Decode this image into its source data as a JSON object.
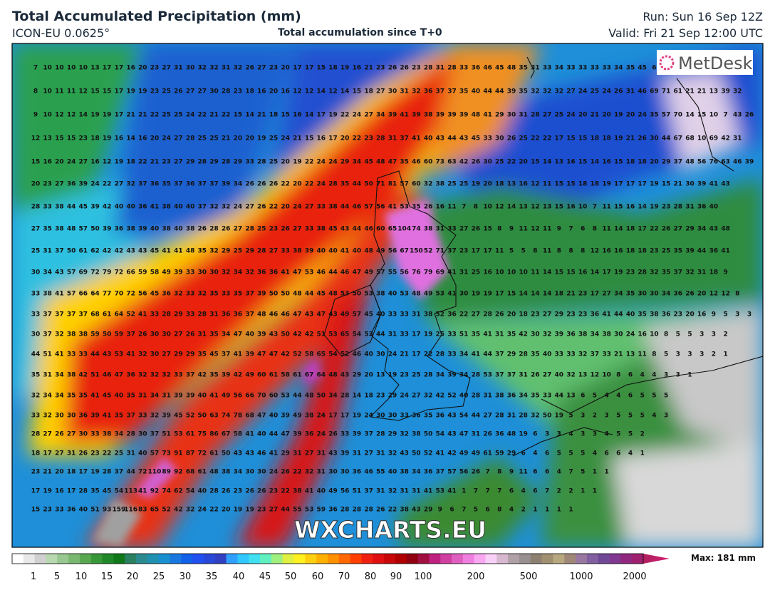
{
  "header": {
    "title": "Total Accumulated Precipitation (mm)",
    "model": "ICON-EU 0.0625°",
    "subtitle": "Total accumulation since T+0",
    "run": "Run: Sun 16 Sep 12Z",
    "valid": "Valid: Fri 21 Sep 12:00 UTC"
  },
  "map": {
    "logo": "MetDesk",
    "watermark": "WXCHARTS.EU",
    "rows": [
      [
        7,
        10,
        10,
        10,
        10,
        13,
        17,
        17,
        16,
        20,
        23,
        27,
        31,
        30,
        32,
        32,
        31,
        32,
        26,
        27,
        23,
        20,
        17,
        17,
        15,
        18,
        19,
        16,
        21,
        23,
        26,
        26,
        23,
        28,
        31,
        28,
        33,
        36,
        46,
        45,
        48,
        35,
        31,
        33,
        34,
        33,
        33,
        33,
        33,
        34,
        35,
        45,
        6
      ],
      [
        8,
        10,
        11,
        11,
        12,
        15,
        15,
        17,
        19,
        19,
        23,
        25,
        26,
        27,
        27,
        30,
        28,
        23,
        18,
        16,
        20,
        16,
        12,
        12,
        14,
        12,
        14,
        15,
        18,
        27,
        30,
        31,
        32,
        36,
        37,
        37,
        35,
        40,
        44,
        44,
        39,
        35,
        32,
        32,
        32,
        27,
        24,
        25,
        24,
        26,
        31,
        46,
        69,
        71,
        61,
        21,
        21,
        13,
        39,
        32
      ],
      [
        9,
        10,
        12,
        12,
        14,
        19,
        19,
        17,
        21,
        21,
        22,
        25,
        25,
        24,
        22,
        21,
        22,
        15,
        14,
        21,
        18,
        15,
        16,
        14,
        17,
        19,
        22,
        24,
        27,
        34,
        39,
        41,
        39,
        38,
        39,
        39,
        39,
        48,
        41,
        29,
        30,
        31,
        28,
        27,
        25,
        24,
        20,
        21,
        20,
        19,
        20,
        24,
        35,
        57,
        70,
        14,
        15,
        10,
        7,
        43,
        26
      ],
      [
        12,
        13,
        15,
        15,
        23,
        18,
        19,
        16,
        14,
        16,
        20,
        24,
        27,
        28,
        25,
        25,
        21,
        20,
        20,
        19,
        25,
        24,
        21,
        15,
        16,
        17,
        20,
        22,
        23,
        28,
        31,
        37,
        41,
        40,
        43,
        44,
        43,
        45,
        33,
        30,
        26,
        25,
        22,
        22,
        17,
        15,
        15,
        18,
        18,
        19,
        21,
        26,
        30,
        44,
        67,
        68,
        10,
        69,
        42,
        31
      ],
      [
        15,
        16,
        20,
        24,
        27,
        16,
        12,
        19,
        18,
        22,
        21,
        23,
        27,
        29,
        28,
        29,
        28,
        29,
        33,
        28,
        25,
        20,
        19,
        22,
        24,
        24,
        29,
        34,
        45,
        48,
        47,
        35,
        46,
        60,
        73,
        63,
        42,
        26,
        30,
        25,
        22,
        20,
        15,
        14,
        13,
        16,
        15,
        14,
        16,
        15,
        18,
        18,
        20,
        29,
        37,
        48,
        56,
        76,
        63,
        46,
        39
      ],
      [
        20,
        23,
        27,
        36,
        39,
        24,
        22,
        27,
        32,
        37,
        36,
        35,
        37,
        36,
        37,
        37,
        39,
        34,
        26,
        26,
        26,
        22,
        20,
        22,
        24,
        28,
        35,
        44,
        50,
        71,
        81,
        57,
        60,
        32,
        38,
        25,
        25,
        19,
        20,
        18,
        13,
        16,
        12,
        11,
        15,
        15,
        18,
        18,
        19,
        17,
        17,
        17,
        19,
        15,
        21,
        30,
        39,
        41,
        43
      ],
      [
        28,
        33,
        38,
        44,
        45,
        39,
        42,
        40,
        40,
        36,
        41,
        38,
        40,
        40,
        37,
        32,
        32,
        24,
        27,
        26,
        22,
        20,
        24,
        27,
        33,
        38,
        44,
        46,
        57,
        56,
        41,
        53,
        35,
        26,
        16,
        11,
        7,
        8,
        10,
        12,
        14,
        13,
        12,
        13,
        15,
        16,
        10,
        7,
        11,
        15,
        16,
        14,
        19,
        23,
        28,
        31,
        36,
        40
      ],
      [
        27,
        35,
        38,
        48,
        57,
        50,
        39,
        36,
        38,
        39,
        40,
        38,
        40,
        38,
        26,
        28,
        26,
        27,
        28,
        25,
        23,
        26,
        27,
        33,
        38,
        45,
        43,
        44,
        46,
        60,
        65,
        104,
        74,
        38,
        31,
        33,
        27,
        26,
        15,
        8,
        9,
        11,
        12,
        11,
        9,
        7,
        6,
        8,
        11,
        14,
        18,
        17,
        22,
        26,
        27,
        29,
        34,
        43,
        48
      ],
      [
        25,
        31,
        37,
        50,
        61,
        62,
        42,
        42,
        43,
        43,
        45,
        41,
        41,
        48,
        35,
        32,
        29,
        25,
        29,
        28,
        27,
        33,
        38,
        39,
        40,
        40,
        41,
        40,
        48,
        49,
        56,
        67,
        150,
        52,
        71,
        37,
        23,
        17,
        17,
        11,
        5,
        5,
        8,
        11,
        8,
        8,
        8,
        12,
        16,
        16,
        18,
        18,
        23,
        25,
        35,
        39,
        44,
        36,
        41
      ],
      [
        30,
        34,
        43,
        57,
        69,
        72,
        79,
        72,
        66,
        59,
        58,
        49,
        39,
        33,
        30,
        30,
        32,
        34,
        32,
        36,
        36,
        41,
        47,
        53,
        46,
        44,
        46,
        47,
        49,
        57,
        55,
        56,
        76,
        79,
        69,
        41,
        31,
        25,
        16,
        10,
        10,
        10,
        11,
        14,
        15,
        15,
        16,
        14,
        17,
        19,
        23,
        28,
        32,
        35,
        37,
        32,
        31,
        18,
        9
      ],
      [
        33,
        38,
        41,
        57,
        66,
        64,
        77,
        70,
        72,
        56,
        45,
        36,
        32,
        33,
        32,
        35,
        33,
        35,
        37,
        39,
        50,
        50,
        48,
        44,
        45,
        48,
        53,
        50,
        53,
        38,
        40,
        53,
        48,
        49,
        53,
        41,
        30,
        19,
        19,
        17,
        15,
        14,
        14,
        14,
        18,
        21,
        23,
        17,
        27,
        34,
        35,
        30,
        30,
        34,
        36,
        26,
        20,
        12,
        12,
        8
      ],
      [
        33,
        37,
        37,
        37,
        37,
        68,
        61,
        64,
        52,
        41,
        33,
        28,
        29,
        33,
        28,
        31,
        36,
        36,
        37,
        48,
        46,
        46,
        47,
        43,
        47,
        43,
        49,
        57,
        45,
        40,
        33,
        33,
        31,
        38,
        52,
        36,
        22,
        27,
        28,
        26,
        20,
        18,
        23,
        27,
        29,
        23,
        23,
        36,
        41,
        44,
        40,
        35,
        38,
        36,
        23,
        20,
        16,
        9,
        5,
        3,
        3
      ],
      [
        30,
        37,
        32,
        38,
        38,
        59,
        50,
        59,
        37,
        26,
        30,
        30,
        27,
        26,
        31,
        35,
        34,
        47,
        40,
        39,
        43,
        50,
        42,
        42,
        51,
        53,
        65,
        54,
        53,
        44,
        31,
        33,
        17,
        19,
        25,
        33,
        51,
        35,
        41,
        31,
        35,
        42,
        30,
        32,
        39,
        36,
        38,
        34,
        38,
        30,
        24,
        16,
        10,
        8,
        5,
        5,
        3,
        3,
        2
      ],
      [
        44,
        51,
        41,
        33,
        33,
        44,
        43,
        53,
        41,
        32,
        30,
        27,
        29,
        29,
        35,
        45,
        37,
        41,
        39,
        47,
        47,
        42,
        52,
        58,
        65,
        54,
        52,
        46,
        40,
        30,
        24,
        21,
        17,
        22,
        28,
        33,
        34,
        41,
        44,
        37,
        29,
        28,
        35,
        40,
        33,
        33,
        32,
        37,
        33,
        21,
        13,
        11,
        8,
        5,
        3,
        3,
        3,
        2,
        1
      ],
      [
        35,
        31,
        34,
        38,
        42,
        51,
        46,
        47,
        36,
        32,
        32,
        32,
        33,
        37,
        42,
        35,
        39,
        42,
        49,
        60,
        61,
        58,
        61,
        67,
        64,
        48,
        43,
        29,
        20,
        13,
        19,
        23,
        25,
        28,
        34,
        39,
        34,
        28,
        53,
        37,
        37,
        31,
        26,
        27,
        40,
        32,
        13,
        12,
        10,
        8,
        6,
        4,
        4,
        3,
        3,
        1
      ],
      [
        32,
        34,
        34,
        35,
        35,
        41,
        45,
        40,
        35,
        31,
        34,
        31,
        39,
        39,
        40,
        41,
        49,
        56,
        66,
        70,
        60,
        53,
        44,
        48,
        50,
        34,
        28,
        14,
        18,
        23,
        29,
        24,
        27,
        32,
        42,
        52,
        40,
        28,
        31,
        38,
        36,
        34,
        35,
        33,
        44,
        13,
        6,
        5,
        4,
        4,
        6,
        5,
        5,
        5
      ],
      [
        33,
        32,
        30,
        30,
        36,
        39,
        41,
        35,
        37,
        33,
        32,
        39,
        45,
        52,
        50,
        63,
        74,
        78,
        68,
        47,
        40,
        39,
        49,
        38,
        24,
        17,
        17,
        19,
        24,
        30,
        30,
        33,
        36,
        35,
        36,
        43,
        54,
        44,
        27,
        28,
        31,
        28,
        32,
        50,
        19,
        5,
        3,
        2,
        3,
        5,
        5,
        5,
        4,
        3
      ],
      [
        28,
        27,
        26,
        27,
        30,
        33,
        38,
        34,
        28,
        30,
        37,
        51,
        53,
        61,
        75,
        86,
        67,
        58,
        41,
        40,
        44,
        47,
        39,
        36,
        24,
        26,
        33,
        39,
        37,
        28,
        29,
        32,
        38,
        50,
        54,
        43,
        47,
        31,
        26,
        36,
        48,
        19,
        6,
        3,
        3,
        4,
        3,
        3,
        4,
        5,
        5,
        2
      ],
      [
        18,
        17,
        27,
        31,
        26,
        23,
        22,
        25,
        31,
        40,
        57,
        73,
        91,
        87,
        72,
        61,
        50,
        43,
        43,
        46,
        41,
        29,
        31,
        27,
        31,
        43,
        39,
        31,
        27,
        31,
        32,
        43,
        50,
        52,
        41,
        42,
        49,
        49,
        61,
        59,
        29,
        6,
        4,
        6,
        5,
        5,
        5,
        4,
        6,
        6,
        4,
        1
      ],
      [
        23,
        21,
        20,
        18,
        17,
        19,
        28,
        37,
        44,
        72,
        110,
        89,
        92,
        68,
        61,
        48,
        38,
        34,
        30,
        30,
        24,
        26,
        22,
        32,
        31,
        30,
        30,
        36,
        46,
        55,
        40,
        38,
        34,
        36,
        37,
        57,
        56,
        26,
        7,
        8,
        9,
        11,
        6,
        6,
        4,
        7,
        5,
        1,
        1
      ],
      [
        17,
        19,
        16,
        17,
        28,
        35,
        45,
        54,
        113,
        41,
        92,
        74,
        62,
        54,
        40,
        28,
        26,
        23,
        26,
        26,
        23,
        22,
        38,
        41,
        40,
        49,
        56,
        51,
        37,
        31,
        32,
        31,
        31,
        41,
        53,
        41,
        1,
        7,
        7,
        7,
        6,
        4,
        6,
        7,
        2,
        2,
        1,
        1
      ],
      [
        15,
        23,
        33,
        36,
        40,
        51,
        93,
        159,
        116,
        83,
        65,
        52,
        42,
        32,
        24,
        22,
        20,
        19,
        19,
        23,
        27,
        44,
        55,
        53,
        59,
        36,
        28,
        28,
        28,
        26,
        22,
        38,
        43,
        29,
        9,
        6,
        7,
        5,
        6,
        8,
        4,
        2,
        1,
        1,
        1,
        1
      ]
    ]
  },
  "legend": {
    "labels": [
      1,
      5,
      10,
      15,
      20,
      25,
      30,
      35,
      40,
      45,
      50,
      60,
      70,
      80,
      90,
      100,
      200,
      500,
      1000,
      2000
    ],
    "max": "Max: 181 mm"
  }
}
